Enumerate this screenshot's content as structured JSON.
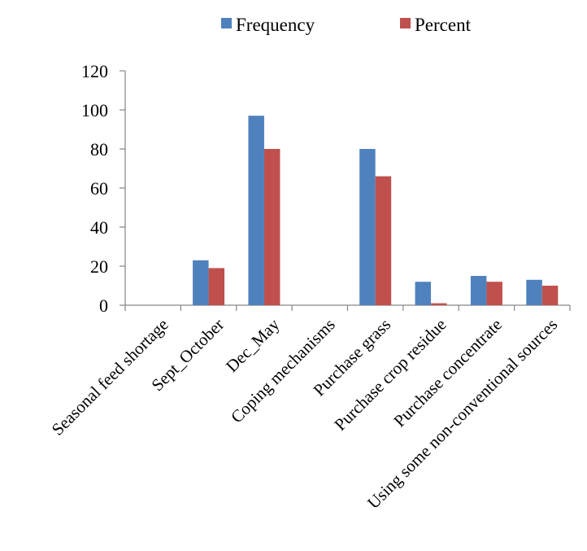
{
  "chart_data": {
    "type": "bar",
    "categories": [
      "Seasonal feed shortage",
      "Sept_October",
      "Dec_May",
      "Coping mechanisms",
      "Purchase grass",
      "Purchase crop residue",
      "Purchase concentrate",
      "Using some non-conventional sources"
    ],
    "series": [
      {
        "name": "Frequency",
        "color": "#4F81BD",
        "values": [
          null,
          23,
          97,
          null,
          80,
          12,
          15,
          13
        ]
      },
      {
        "name": "Percent",
        "color": "#C0504D",
        "values": [
          null,
          19,
          80,
          null,
          66,
          1,
          12,
          10
        ]
      }
    ],
    "ylim": [
      0,
      120
    ],
    "yticks": [
      0,
      20,
      40,
      60,
      80,
      100,
      120
    ],
    "grid": false,
    "legend_position": "top-center",
    "title": "",
    "xlabel": "",
    "ylabel": ""
  }
}
